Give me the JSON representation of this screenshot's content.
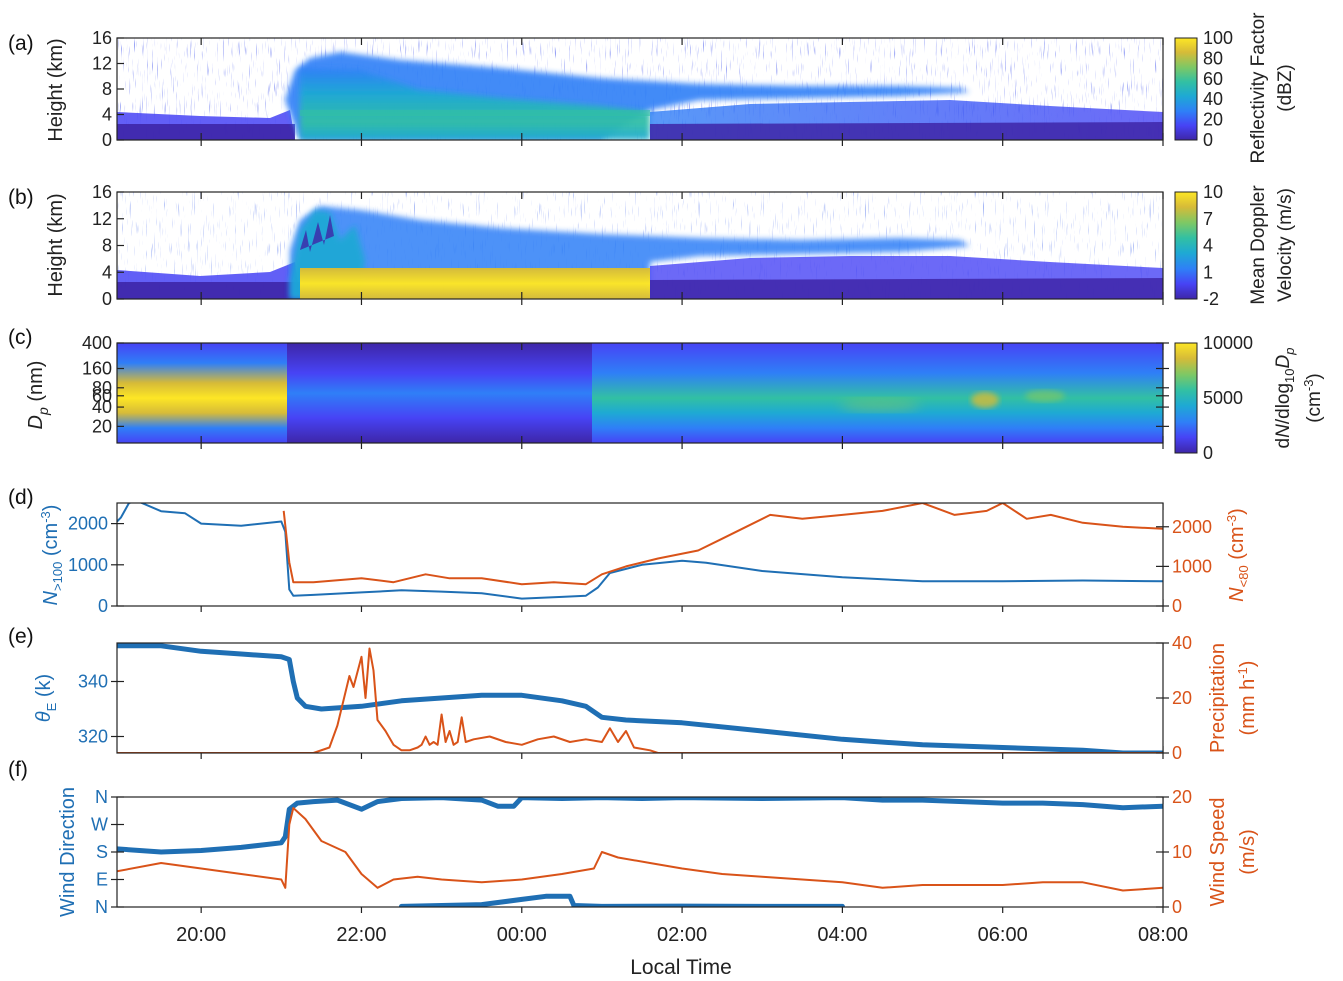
{
  "figure": {
    "xlabel": "Local Time",
    "x_ticks": [
      "20:00",
      "22:00",
      "00:00",
      "02:00",
      "04:00",
      "06:00",
      "08:00"
    ],
    "x_range_hours": [
      -5.05,
      8.0
    ]
  },
  "colors": {
    "blue": "#1f6fb4",
    "orange": "#d95319",
    "colormap": [
      "#3e26a8",
      "#4743f5",
      "#2f7ff7",
      "#1ea9d4",
      "#32c0a3",
      "#7cc866",
      "#d6bb38",
      "#fde625"
    ]
  },
  "chart_data": [
    {
      "id": "a",
      "type": "heatmap",
      "panel_label": "(a)",
      "ylabel": "Height (km)",
      "yticks": [
        "0",
        "4",
        "8",
        "12",
        "16"
      ],
      "ylim": [
        0,
        16
      ],
      "colorbar_label": "Reflectivity Factor (dBZ)",
      "colorbar_ticks": [
        "0",
        "20",
        "40",
        "60",
        "80",
        "100"
      ],
      "clim": [
        0,
        100
      ]
    },
    {
      "id": "b",
      "type": "heatmap",
      "panel_label": "(b)",
      "ylabel": "Height (km)",
      "yticks": [
        "0",
        "4",
        "8",
        "12",
        "16"
      ],
      "ylim": [
        0,
        16
      ],
      "colorbar_label": "Mean Doppler Velocity (m/s)",
      "colorbar_ticks": [
        "-2",
        "1",
        "4",
        "7",
        "10"
      ],
      "clim": [
        -2,
        10
      ]
    },
    {
      "id": "c",
      "type": "heatmap",
      "panel_label": "(c)",
      "ylabel": "Dp (nm)",
      "yscale": "log",
      "yticks": [
        "20",
        "40",
        "60",
        "80",
        "160",
        "400"
      ],
      "colorbar_label": "dN/dlog10Dp (cm-3)",
      "colorbar_ticks": [
        "0",
        "5000",
        "10000"
      ],
      "clim": [
        0,
        10000
      ]
    },
    {
      "id": "d",
      "type": "line",
      "panel_label": "(d)",
      "ylabel_left": "N>100 (cm-3)",
      "ylabel_right": "N<80 (cm-3)",
      "yticks_left": [
        "0",
        "1000",
        "2000"
      ],
      "yticks_right": [
        "0",
        "1000",
        "2000"
      ],
      "ylim_left": [
        0,
        2500
      ],
      "ylim_right": [
        0,
        2600
      ],
      "series": [
        {
          "axis": "left",
          "color": "blue",
          "x": [
            -5.05,
            -5.0,
            -4.9,
            -4.8,
            -4.5,
            -4.2,
            -4.0,
            -3.5,
            -3.0,
            -2.95,
            -2.9,
            -2.85,
            -2.6,
            -2.0,
            -1.5,
            -1.0,
            -0.5,
            0.0,
            0.5,
            0.8,
            0.95,
            1.1,
            1.5,
            2.0,
            2.3,
            3.0,
            4.0,
            5.0,
            6.0,
            7.0,
            8.0
          ],
          "y": [
            2050,
            2150,
            2500,
            2550,
            2300,
            2250,
            2000,
            1950,
            2050,
            1800,
            400,
            250,
            270,
            330,
            380,
            350,
            310,
            180,
            220,
            250,
            450,
            800,
            1000,
            1100,
            1050,
            850,
            700,
            600,
            600,
            620,
            600
          ]
        },
        {
          "axis": "right",
          "color": "orange",
          "x": [
            -2.97,
            -2.9,
            -2.85,
            -2.6,
            -2.0,
            -1.6,
            -1.2,
            -0.9,
            -0.5,
            0.0,
            0.4,
            0.8,
            1.0,
            1.3,
            1.7,
            2.2,
            2.5,
            2.8,
            3.1,
            3.5,
            4.0,
            4.5,
            5.0,
            5.4,
            5.8,
            6.0,
            6.3,
            6.6,
            7.0,
            7.5,
            8.0
          ],
          "y": [
            2400,
            1100,
            600,
            600,
            700,
            600,
            800,
            700,
            700,
            550,
            600,
            550,
            800,
            1000,
            1200,
            1400,
            1700,
            2000,
            2300,
            2200,
            2300,
            2400,
            2600,
            2300,
            2400,
            2600,
            2200,
            2300,
            2100,
            2000,
            1950
          ]
        }
      ]
    },
    {
      "id": "e",
      "type": "line",
      "panel_label": "(e)",
      "ylabel_left": "θE (k)",
      "ylabel_right": "Precipitation (mm h-1)",
      "yticks_left": [
        "320",
        "340"
      ],
      "yticks_right": [
        "0",
        "20",
        "40"
      ],
      "ylim_left": [
        314,
        354
      ],
      "ylim_right": [
        0,
        40
      ],
      "series": [
        {
          "axis": "left",
          "color": "blue",
          "style": "markers",
          "x": [
            -5.05,
            -4.5,
            -4.0,
            -3.5,
            -3.0,
            -2.9,
            -2.85,
            -2.8,
            -2.7,
            -2.5,
            -2.0,
            -1.5,
            -1.0,
            -0.5,
            0.0,
            0.5,
            0.8,
            1.0,
            1.3,
            2.0,
            3.0,
            4.0,
            5.0,
            6.0,
            7.0,
            7.5,
            8.0
          ],
          "y": [
            353,
            353,
            351,
            350,
            349,
            348,
            340,
            334,
            331,
            330,
            331,
            333,
            334,
            335,
            335,
            333,
            331,
            327,
            326,
            325,
            322,
            319,
            317,
            316,
            315,
            314,
            314
          ]
        },
        {
          "axis": "right",
          "color": "orange",
          "x": [
            -5.05,
            -2.6,
            -2.4,
            -2.3,
            -2.15,
            -2.1,
            -2.0,
            -1.95,
            -1.9,
            -1.85,
            -1.8,
            -1.7,
            -1.6,
            -1.5,
            -1.4,
            -1.3,
            -1.25,
            -1.2,
            -1.15,
            -1.1,
            -1.05,
            -1.0,
            -0.95,
            -0.9,
            -0.85,
            -0.8,
            -0.75,
            -0.7,
            -0.6,
            -0.4,
            -0.2,
            0.0,
            0.2,
            0.4,
            0.6,
            0.8,
            1.0,
            1.1,
            1.2,
            1.3,
            1.4,
            1.6,
            1.7,
            8.0
          ],
          "y": [
            0,
            0,
            2,
            10,
            28,
            24,
            35,
            20,
            38,
            30,
            12,
            8,
            3,
            1,
            1,
            2,
            3,
            6,
            3,
            4,
            3,
            14,
            4,
            8,
            3,
            4,
            13,
            4,
            5,
            6,
            4,
            3,
            5,
            6,
            4,
            5,
            4,
            9,
            4,
            8,
            2,
            1,
            0,
            0
          ]
        }
      ]
    },
    {
      "id": "f",
      "type": "line",
      "panel_label": "(f)",
      "ylabel_left": "Wind Direction",
      "ylabel_right": "Wind Speed (m/s)",
      "yticks_left": [
        "N",
        "E",
        "S",
        "W",
        "N"
      ],
      "yticks_right": [
        "0",
        "10",
        "20"
      ],
      "ylim_left": [
        0,
        360
      ],
      "ylim_right": [
        0,
        20
      ],
      "series": [
        {
          "axis": "left",
          "color": "blue",
          "style": "markers",
          "x": [
            -5.05,
            -4.5,
            -4.0,
            -3.5,
            -3.0,
            -2.95,
            -2.9,
            -2.8,
            -2.6,
            -2.3,
            -2.0,
            -1.8,
            -1.5,
            -1.0,
            -0.5,
            -0.3,
            -0.1,
            0.0,
            0.5,
            1.0,
            1.5,
            2.0,
            3.0,
            4.0,
            4.5,
            5.0,
            5.5,
            6.0,
            6.5,
            7.0,
            7.5,
            8.0
          ],
          "y": [
            190,
            180,
            185,
            195,
            210,
            230,
            320,
            340,
            345,
            350,
            320,
            345,
            355,
            358,
            350,
            330,
            330,
            358,
            355,
            358,
            355,
            358,
            355,
            358,
            350,
            350,
            345,
            340,
            340,
            335,
            325,
            330
          ]
        },
        {
          "axis": "left",
          "color": "blue",
          "style": "markers",
          "x": [
            -1.5,
            -0.5,
            0.0,
            0.3,
            0.6,
            0.65,
            1.0,
            2.0,
            3.0,
            4.0
          ],
          "y": [
            2,
            8,
            25,
            35,
            35,
            5,
            2,
            3,
            2,
            2
          ]
        },
        {
          "axis": "right",
          "color": "orange",
          "x": [
            -5.05,
            -4.5,
            -4.0,
            -3.5,
            -3.0,
            -2.95,
            -2.9,
            -2.85,
            -2.7,
            -2.5,
            -2.2,
            -2.0,
            -1.8,
            -1.6,
            -1.3,
            -1.0,
            -0.5,
            0.0,
            0.5,
            0.9,
            1.0,
            1.2,
            1.6,
            2.0,
            2.5,
            3.0,
            4.0,
            4.5,
            5.0,
            6.0,
            6.5,
            7.0,
            7.5,
            8.0
          ],
          "y": [
            6.5,
            8,
            7,
            6,
            5,
            3.5,
            15,
            18,
            16,
            12,
            10,
            6,
            3.5,
            5,
            5.5,
            5,
            4.5,
            5,
            6,
            7,
            10,
            9,
            8,
            7,
            6,
            5.5,
            4.5,
            3.5,
            4,
            4,
            4.5,
            4.5,
            3,
            3.5
          ]
        }
      ]
    }
  ]
}
